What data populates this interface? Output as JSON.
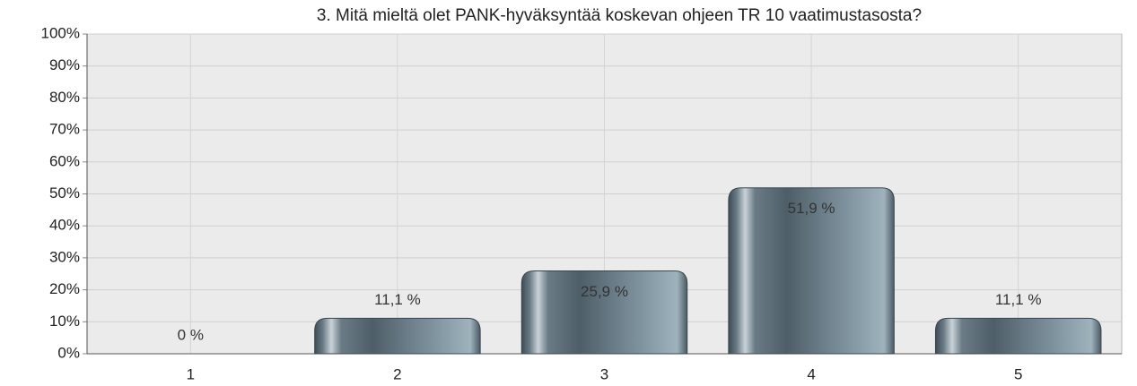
{
  "chart_data": {
    "type": "bar",
    "title": "3. Mitä mieltä olet PANK-hyväksyntää koskevan ohjeen TR 10 vaatimustasosta?",
    "categories": [
      "1",
      "2",
      "3",
      "4",
      "5"
    ],
    "values": [
      0,
      11.1,
      25.9,
      51.9,
      11.1
    ],
    "value_labels": [
      "0 %",
      "11,1 %",
      "25,9 %",
      "51,9 %",
      "11,1 %"
    ],
    "color": "#6f8593",
    "ylim": [
      0,
      100
    ],
    "yticks": [
      {
        "value": 0,
        "label": "0%"
      },
      {
        "value": 10,
        "label": "10%"
      },
      {
        "value": 20,
        "label": "20%"
      },
      {
        "value": 30,
        "label": "30%"
      },
      {
        "value": 40,
        "label": "40%"
      },
      {
        "value": 50,
        "label": "50%"
      },
      {
        "value": 60,
        "label": "60%"
      },
      {
        "value": 70,
        "label": "70%"
      },
      {
        "value": 80,
        "label": "80%"
      },
      {
        "value": 90,
        "label": "90%"
      },
      {
        "value": 100,
        "label": "100%"
      }
    ],
    "grid": true
  }
}
